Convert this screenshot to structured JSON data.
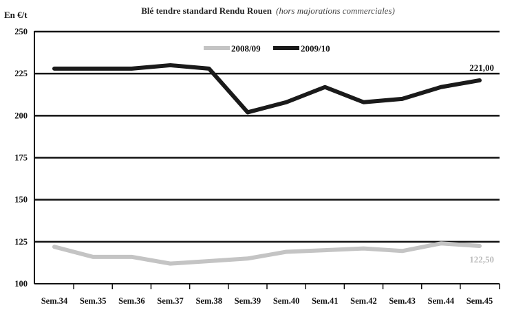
{
  "chart_data": {
    "type": "line",
    "title": "Blé tendre standard Rendu Rouen",
    "subtitle": "(hors majorations commerciales)",
    "ylabel": "En €/t",
    "xlabel": "",
    "ylim": [
      100,
      250
    ],
    "yticks": [
      100,
      125,
      150,
      175,
      200,
      225,
      250
    ],
    "categories": [
      "Sem.34",
      "Sem.35",
      "Sem.36",
      "Sem.37",
      "Sem.38",
      "Sem.39",
      "Sem.40",
      "Sem.41",
      "Sem.42",
      "Sem.43",
      "Sem.44",
      "Sem.45"
    ],
    "grid": true,
    "legend_position": "top-center",
    "series": [
      {
        "name": "2008/09",
        "color": "#c4c4c4",
        "values": [
          122,
          116,
          116,
          112,
          113.5,
          115,
          119,
          120,
          121,
          119.5,
          124,
          122.5
        ],
        "end_label": "122,50"
      },
      {
        "name": "2009/10",
        "color": "#1a1a1a",
        "values": [
          228,
          228,
          228,
          230,
          228,
          202,
          208,
          217,
          208,
          210,
          217,
          221
        ],
        "end_label": "221,00"
      }
    ]
  }
}
